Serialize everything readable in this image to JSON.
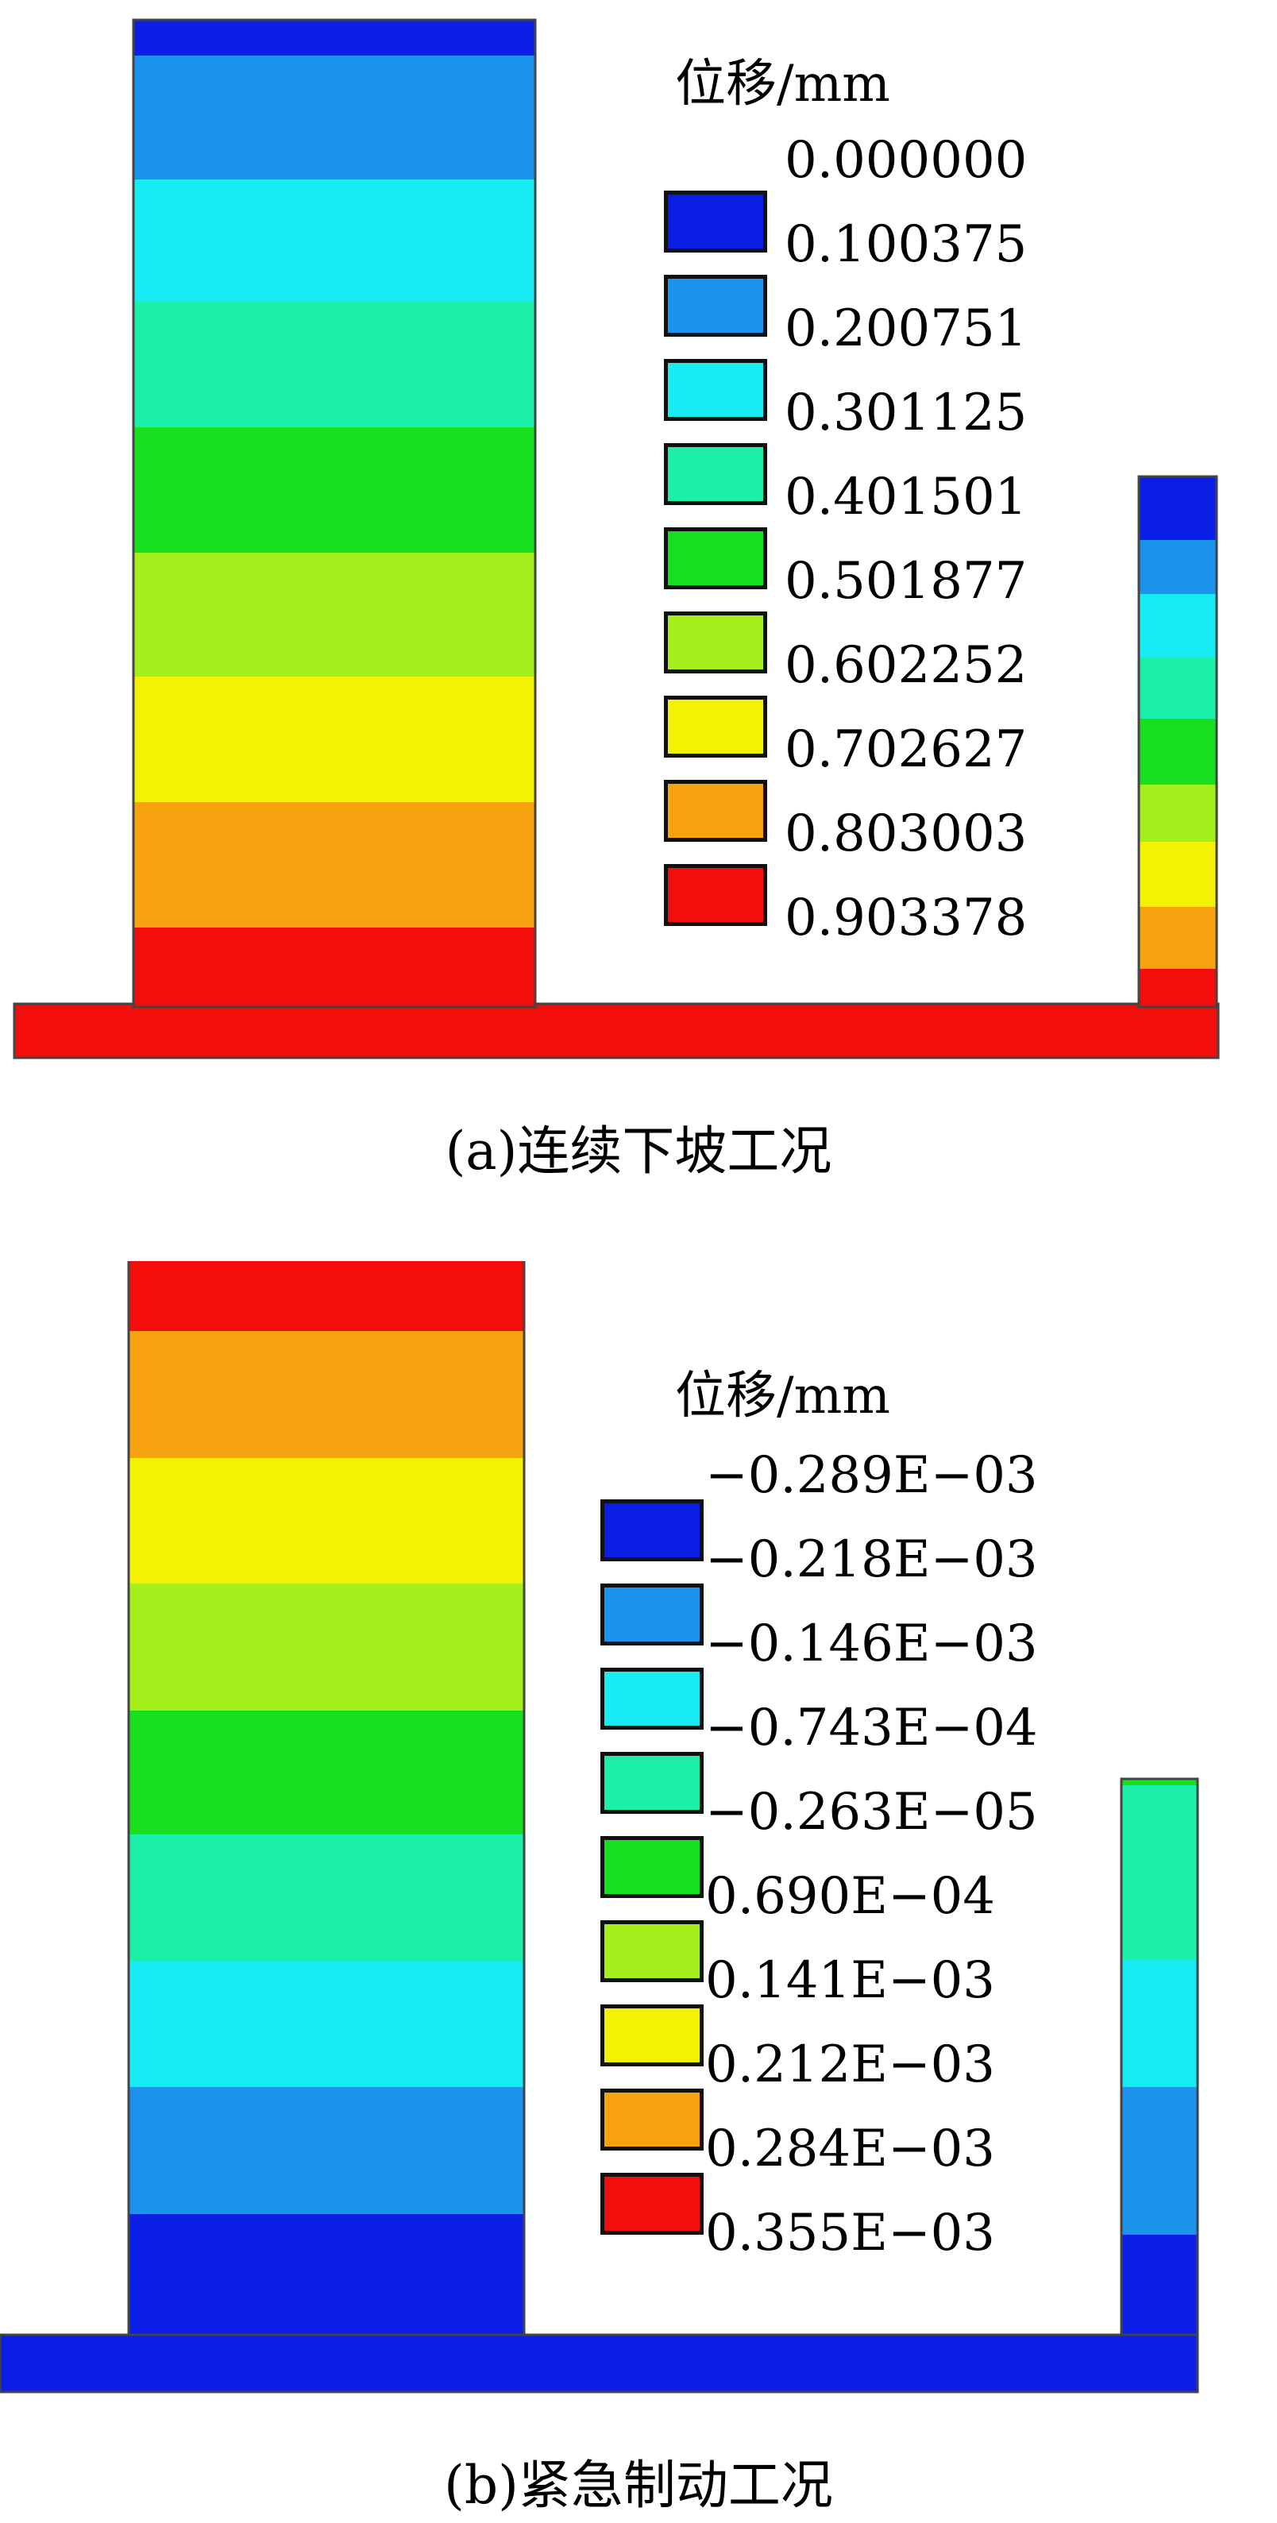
{
  "colors": {
    "band_1": "#0a1ee6",
    "band_2": "#1c94ee",
    "band_3": "#17ecf2",
    "band_4": "#1cf0a8",
    "band_5": "#19e01f",
    "band_6": "#a4ef1c",
    "band_7": "#f4f204",
    "band_8": "#f7a20f",
    "band_9": "#f40d0d",
    "outline": "#444444"
  },
  "panel_a": {
    "legend_title": "位移",
    "legend_unit": "/mm",
    "legend_values": [
      "0.000000",
      "0.100375",
      "0.200751",
      "0.301125",
      "0.401501",
      "0.501877",
      "0.602252",
      "0.702627",
      "0.803003",
      "0.903378"
    ],
    "caption": "(a)连续下坡工况"
  },
  "panel_b": {
    "legend_title": "位移",
    "legend_unit": "/mm",
    "legend_values": [
      "−0.289E−03",
      "−0.218E−03",
      "−0.146E−03",
      "−0.743E−04",
      "−0.263E−05",
      "0.690E−04",
      "0.141E−03",
      "0.212E−03",
      "0.284E−03",
      "0.355E−03"
    ],
    "caption": "(b)紧急制动工况"
  }
}
